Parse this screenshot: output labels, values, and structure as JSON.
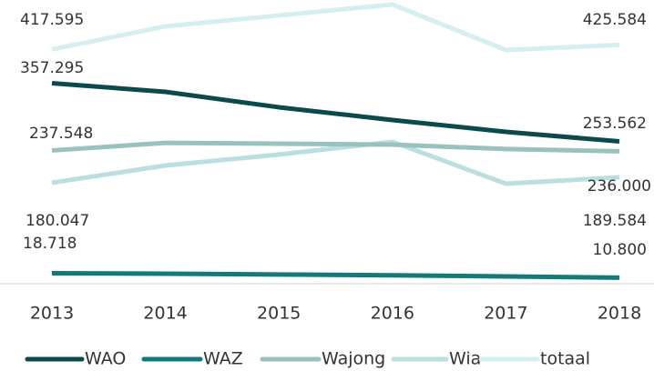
{
  "chart_data": {
    "type": "line",
    "categories": [
      "2013",
      "2014",
      "2015",
      "2016",
      "2017",
      "2018"
    ],
    "ylim": [
      0,
      500000
    ],
    "series": [
      {
        "name": "WAO",
        "color": "#0b4a4a",
        "values": [
          357295,
          342000,
          314500,
          291800,
          270700,
          253562
        ],
        "value_labels": [
          "357.295",
          null,
          null,
          null,
          null,
          "253.562"
        ]
      },
      {
        "name": "WAZ",
        "color": "#127a7a",
        "values": [
          18718,
          17800,
          16500,
          15000,
          13000,
          10800
        ],
        "value_labels": [
          "18.718",
          null,
          null,
          null,
          null,
          "10.800"
        ]
      },
      {
        "name": "Wajong",
        "color": "#99c2bf",
        "values": [
          237548,
          251000,
          249600,
          248000,
          240000,
          236000
        ],
        "value_labels": [
          "237.548",
          null,
          null,
          null,
          null,
          "236.000"
        ]
      },
      {
        "name": "Wia",
        "color": "#b9dfe2",
        "values": [
          180047,
          210700,
          230200,
          252900,
          178300,
          189584
        ],
        "value_labels": [
          "180.047",
          null,
          null,
          null,
          null,
          "189.584"
        ]
      },
      {
        "name": "totaal",
        "color": "#d5eef0",
        "values": [
          417595,
          458700,
          478200,
          497600,
          416600,
          425584
        ],
        "value_labels": [
          "417.595",
          null,
          null,
          null,
          null,
          "425.584"
        ]
      }
    ],
    "legend": "bottom"
  }
}
